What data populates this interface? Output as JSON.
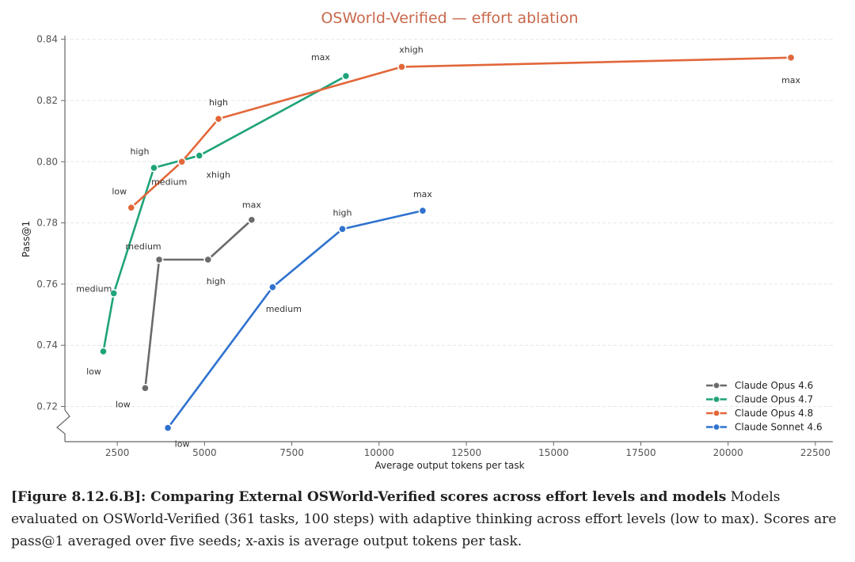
{
  "chart_data": {
    "type": "line",
    "title": "OSWorld-Verified — effort ablation",
    "xlabel": "Average output tokens per task",
    "ylabel": "Pass@1",
    "xlim": [
      1000,
      23000
    ],
    "ylim": [
      0.7085,
      0.8425
    ],
    "y_axis_break": true,
    "xticks": [
      2500,
      5000,
      7500,
      10000,
      12500,
      15000,
      17500,
      20000,
      22500
    ],
    "xtick_labels": [
      "2500",
      "5000",
      "7500",
      "10000",
      "12500",
      "15000",
      "17500",
      "20000",
      "22500"
    ],
    "yticks": [
      0.72,
      0.74,
      0.76,
      0.78,
      0.8,
      0.82,
      0.84
    ],
    "ytick_labels": [
      "0.72",
      "0.74",
      "0.76",
      "0.78",
      "0.80",
      "0.82",
      "0.84"
    ],
    "grid": "horizontal",
    "legend_position": "bottom-right",
    "series": [
      {
        "name": "Claude Opus 4.6",
        "color": "#6b6b6b",
        "points": [
          {
            "label": "low",
            "x": 3300,
            "y": 0.726
          },
          {
            "label": "medium",
            "x": 3700,
            "y": 0.768
          },
          {
            "label": "high",
            "x": 5100,
            "y": 0.768
          },
          {
            "label": "max",
            "x": 6350,
            "y": 0.781
          }
        ]
      },
      {
        "name": "Claude Opus 4.7",
        "color": "#1fa37a",
        "points": [
          {
            "label": "low",
            "x": 2100,
            "y": 0.738
          },
          {
            "label": "medium",
            "x": 2400,
            "y": 0.757
          },
          {
            "label": "high",
            "x": 3550,
            "y": 0.798
          },
          {
            "label": "xhigh",
            "x": 4850,
            "y": 0.802
          },
          {
            "label": "max",
            "x": 9050,
            "y": 0.828
          }
        ]
      },
      {
        "name": "Claude Opus 4.8",
        "color": "#e2673a",
        "points": [
          {
            "label": "low",
            "x": 2900,
            "y": 0.785
          },
          {
            "label": "medium",
            "x": 4350,
            "y": 0.8
          },
          {
            "label": "high",
            "x": 5400,
            "y": 0.814
          },
          {
            "label": "xhigh",
            "x": 10650,
            "y": 0.831
          },
          {
            "label": "max",
            "x": 21800,
            "y": 0.834
          }
        ]
      },
      {
        "name": "Claude Sonnet 4.6",
        "color": "#2f72cf",
        "points": [
          {
            "label": "low",
            "x": 3950,
            "y": 0.713
          },
          {
            "label": "medium",
            "x": 6950,
            "y": 0.759
          },
          {
            "label": "high",
            "x": 8950,
            "y": 0.778
          },
          {
            "label": "max",
            "x": 11250,
            "y": 0.784
          }
        ]
      }
    ]
  },
  "caption": {
    "bold": "[Figure 8.12.6.B]: Comparing External OSWorld-Verified scores across effort levels and models",
    "text": " Models evaluated on OSWorld-Verified (361 tasks, 100 steps) with adaptive thinking across effort levels (low to max). Scores are pass@1 averaged over five seeds; x-axis is average output tokens per task."
  }
}
